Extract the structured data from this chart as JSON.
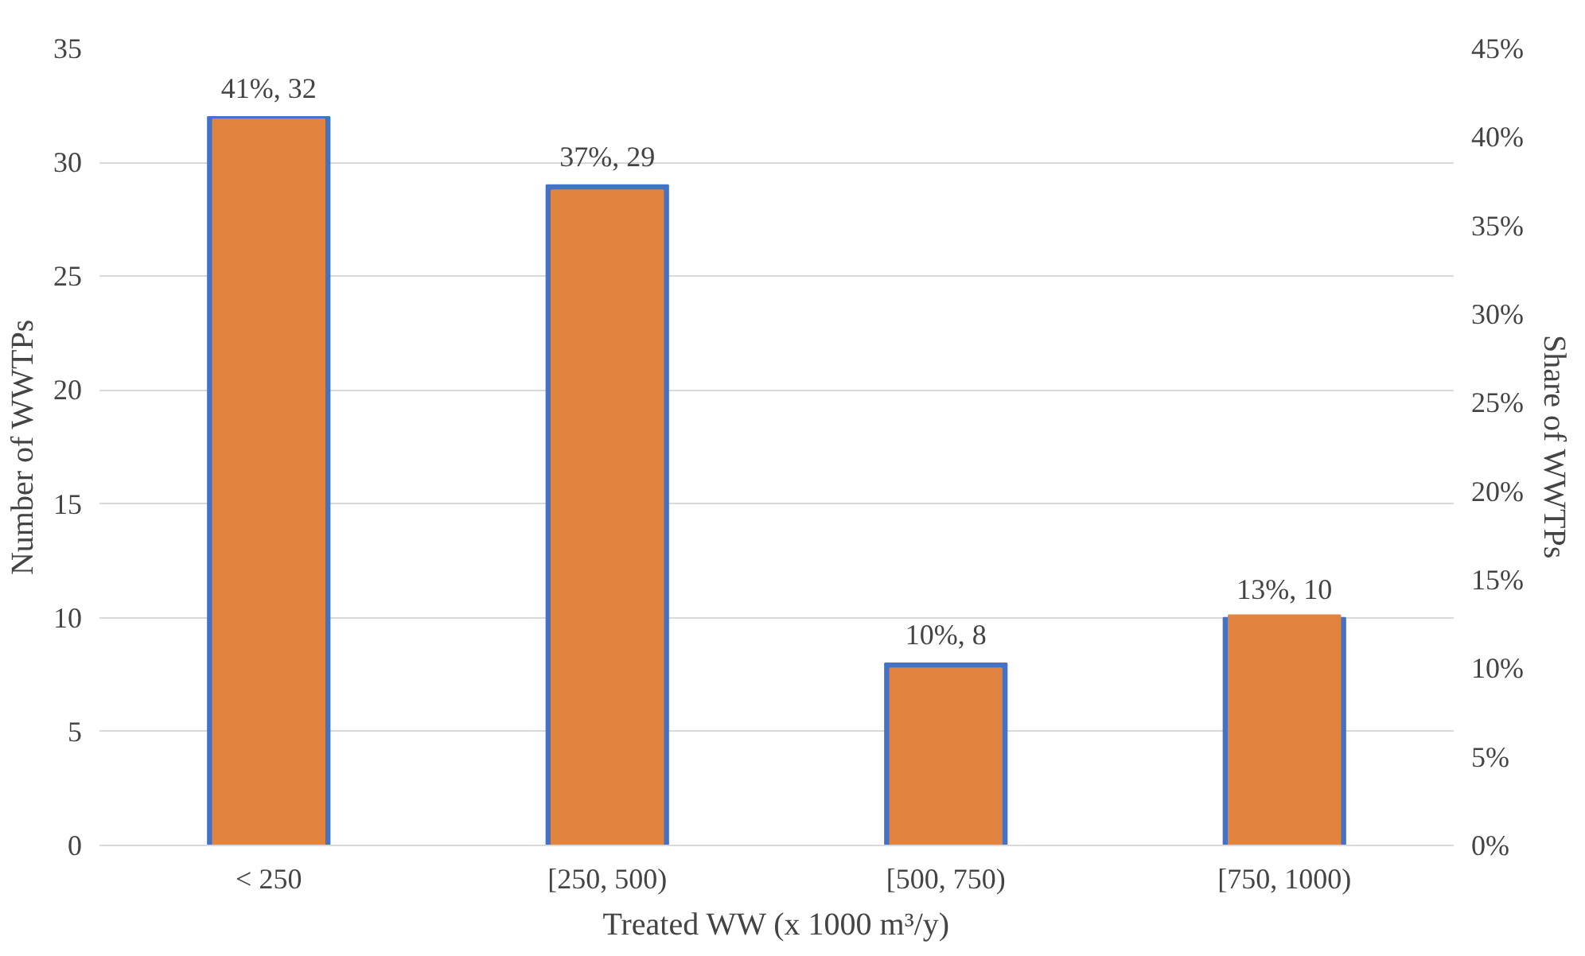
{
  "chart_data": {
    "type": "bar",
    "categories": [
      "< 250",
      "[250, 500)",
      "[500, 750)",
      "[750, 1000)"
    ],
    "series": [
      {
        "color": "#4472c4",
        "values": [
          32,
          29,
          8,
          10
        ],
        "value_labels": [
          "41%, 32",
          "37%, 29",
          "10%, 8",
          "13%, 10"
        ]
      },
      {
        "color": "#e0843f",
        "values": [
          41,
          37,
          10,
          13
        ],
        "axis": "y2"
      }
    ],
    "xlabel": "Treated WW (x 1000 m³/y)",
    "ylabel": "Number of WWTPs",
    "y2label": "Share of WWTPs",
    "ylim": [
      0,
      35
    ],
    "yticks": [
      0,
      5,
      10,
      15,
      20,
      25,
      30,
      35
    ],
    "y2lim": [
      0,
      45
    ],
    "y2ticks": [
      {
        "value": 0,
        "label": "0%"
      },
      {
        "value": 5,
        "label": "5%"
      },
      {
        "value": 10,
        "label": "10%"
      },
      {
        "value": 15,
        "label": "15%"
      },
      {
        "value": 20,
        "label": "20%"
      },
      {
        "value": 25,
        "label": "25%"
      },
      {
        "value": 30,
        "label": "30%"
      },
      {
        "value": 35,
        "label": "35%"
      },
      {
        "value": 40,
        "label": "40%"
      },
      {
        "value": 45,
        "label": "45%"
      }
    ],
    "grid": "y"
  }
}
